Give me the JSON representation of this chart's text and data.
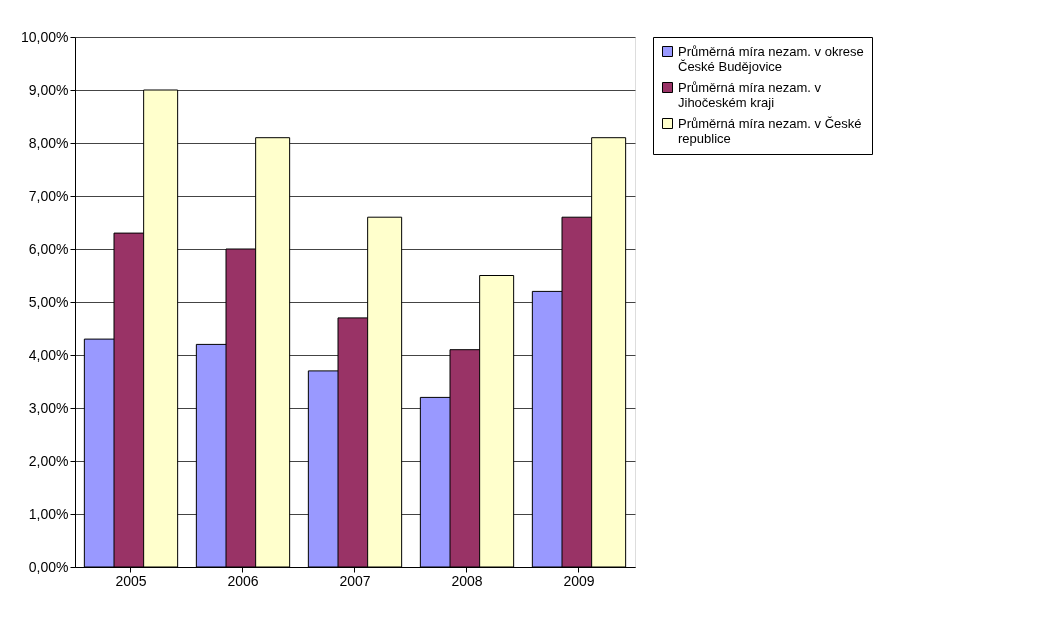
{
  "chart_data": {
    "type": "bar",
    "categories": [
      "2005",
      "2006",
      "2007",
      "2008",
      "2009"
    ],
    "series": [
      {
        "name": "Průměrná míra nezam. v okrese České Budějovice",
        "color": "#9999ff",
        "values": [
          4.3,
          4.2,
          3.7,
          3.2,
          5.2
        ]
      },
      {
        "name": "Průměrná míra nezam. v Jihočeském kraji",
        "color": "#993366",
        "values": [
          6.3,
          6.0,
          4.7,
          4.1,
          6.6
        ]
      },
      {
        "name": "Průměrná míra nezam. v České republice",
        "color": "#ffffcc",
        "values": [
          9.0,
          8.1,
          6.6,
          5.5,
          8.1
        ]
      }
    ],
    "ylim": [
      0,
      10
    ],
    "yticks": [
      {
        "value": 0,
        "label": "0,00%"
      },
      {
        "value": 1,
        "label": "1,00%"
      },
      {
        "value": 2,
        "label": "2,00%"
      },
      {
        "value": 3,
        "label": "3,00%"
      },
      {
        "value": 4,
        "label": "4,00%"
      },
      {
        "value": 5,
        "label": "5,00%"
      },
      {
        "value": 6,
        "label": "6,00%"
      },
      {
        "value": 7,
        "label": "7,00%"
      },
      {
        "value": 8,
        "label": "8,00%"
      },
      {
        "value": 9,
        "label": "9,00%"
      },
      {
        "value": 10,
        "label": "10,00%"
      }
    ],
    "grid": "y",
    "legend": "right"
  }
}
